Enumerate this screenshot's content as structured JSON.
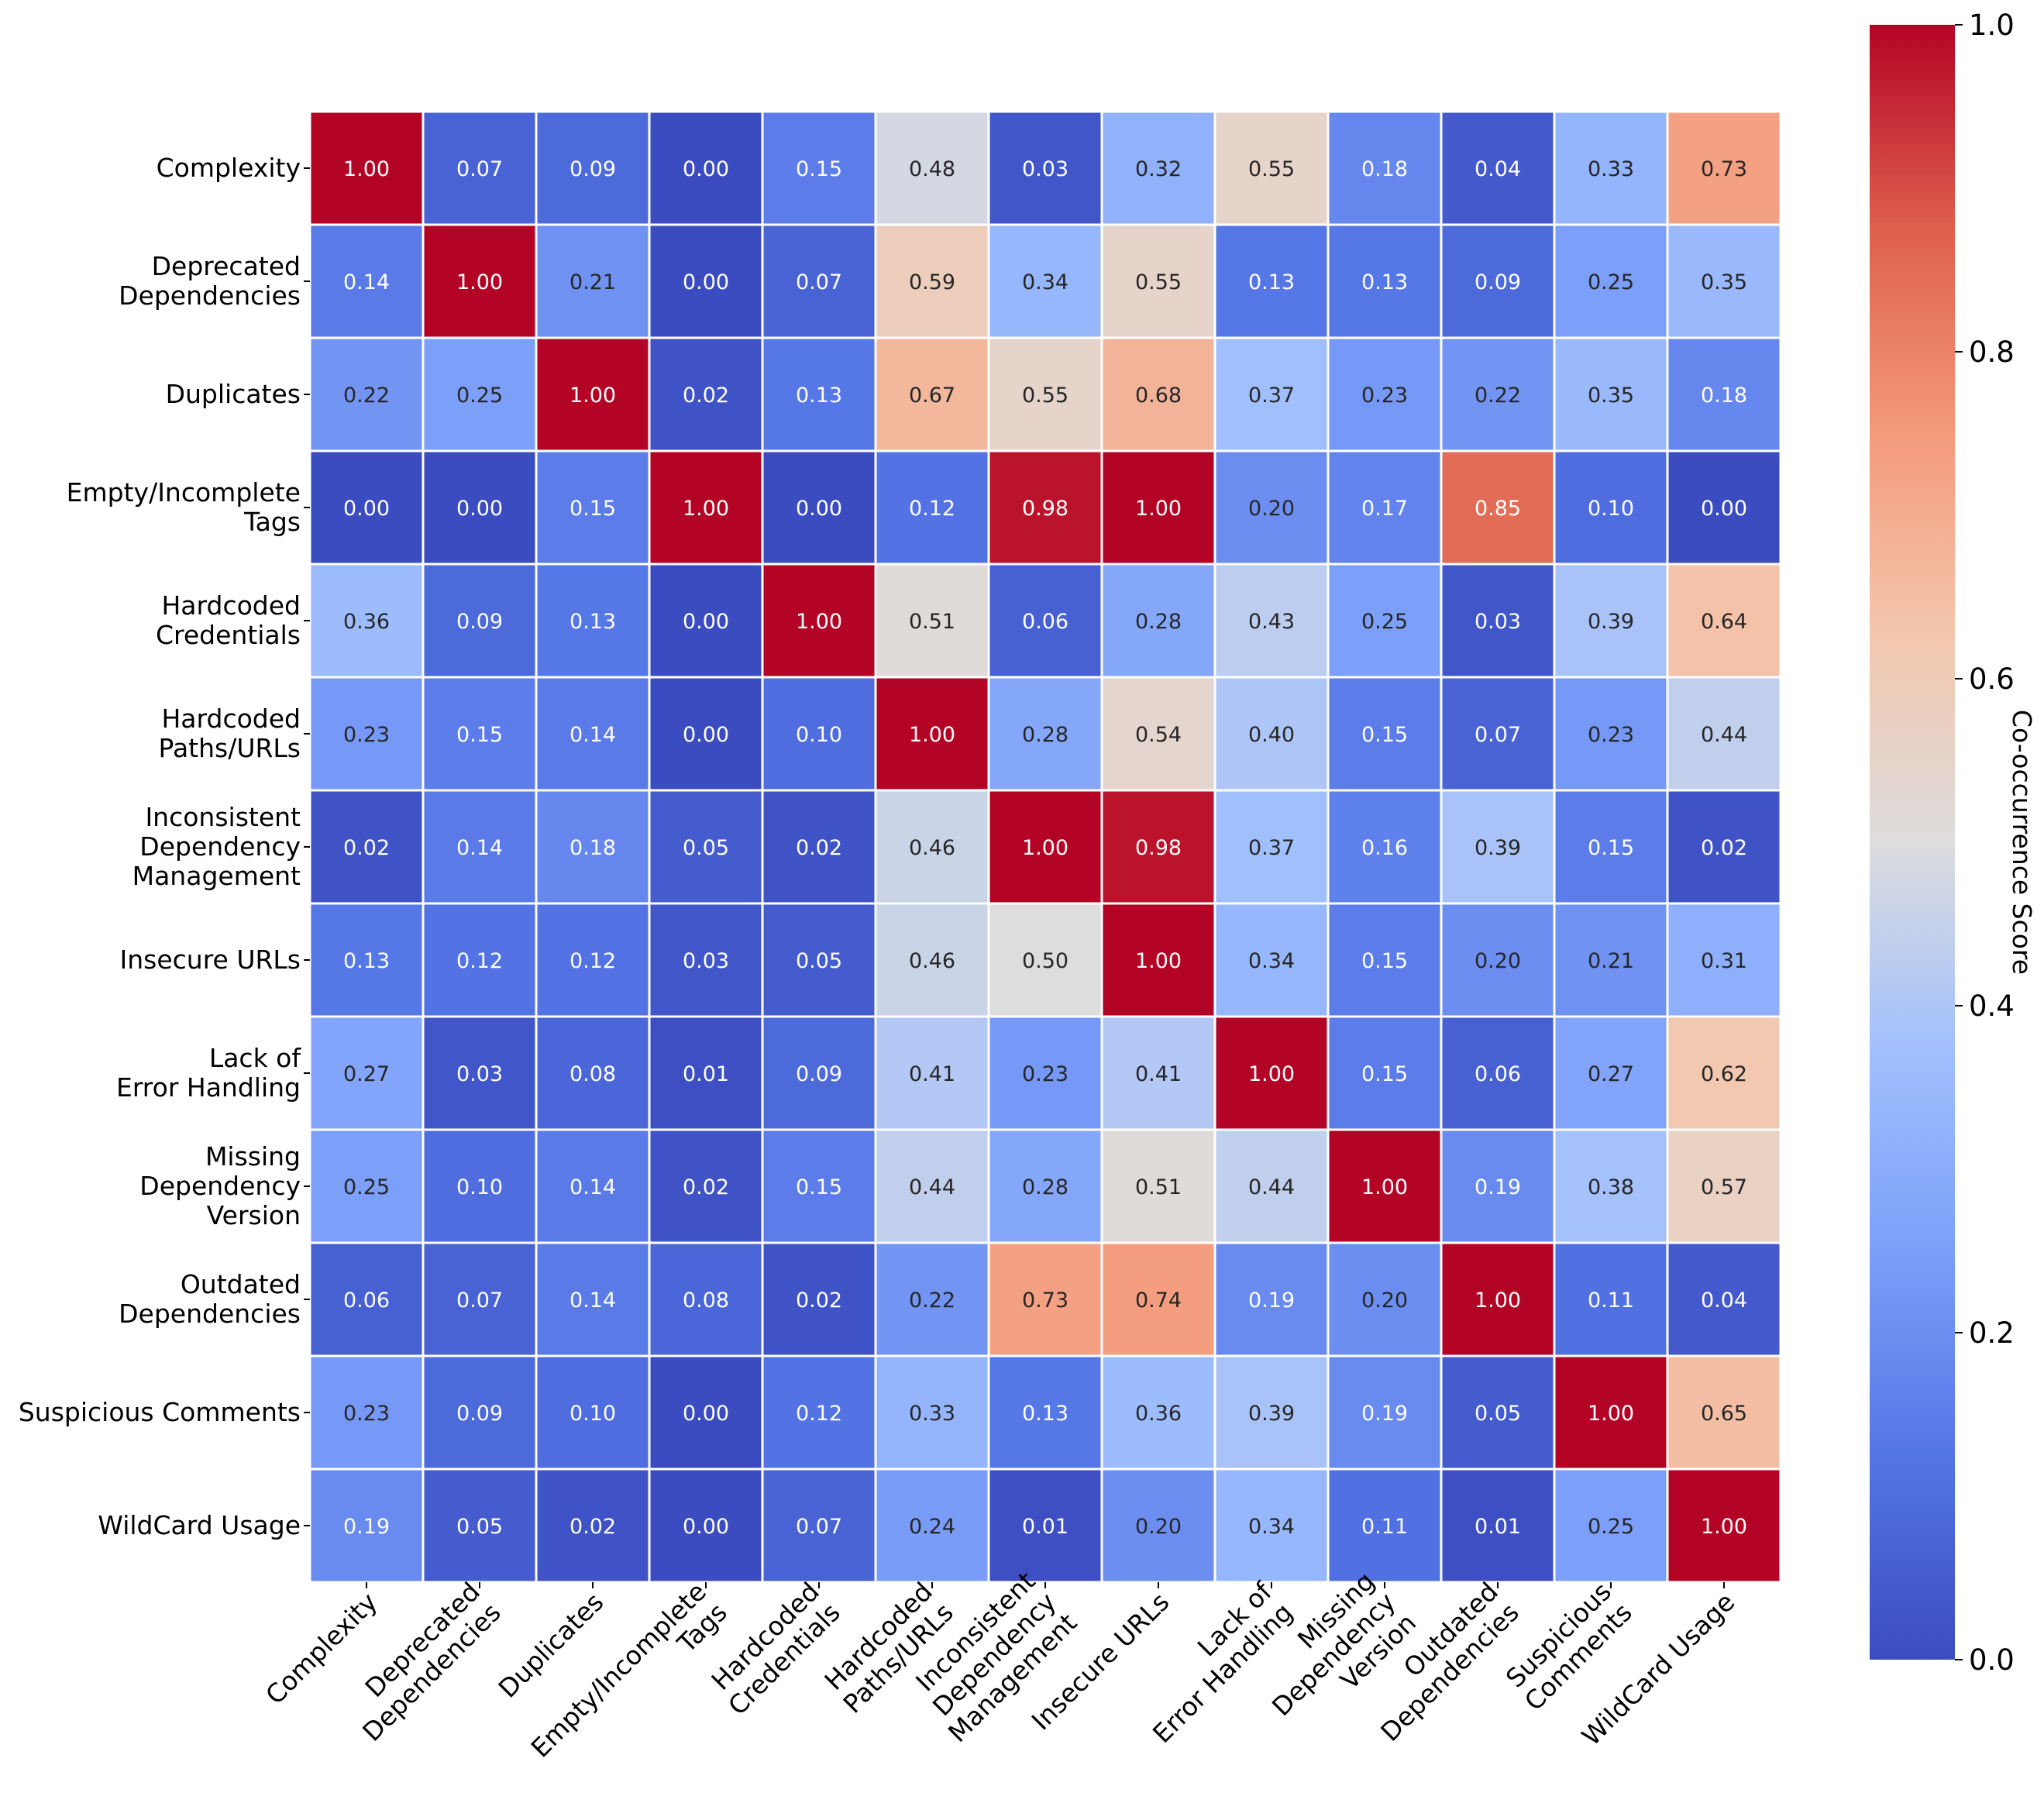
{
  "chart_data": {
    "type": "heatmap",
    "title": "",
    "xlabel": "",
    "ylabel": "",
    "colormap": "coolwarm",
    "vmin": 0.0,
    "vmax": 1.0,
    "row_labels": [
      [
        "Complexity"
      ],
      [
        "Deprecated",
        "Dependencies"
      ],
      [
        "Duplicates"
      ],
      [
        "Empty/Incomplete",
        "Tags"
      ],
      [
        "Hardcoded",
        "Credentials"
      ],
      [
        "Hardcoded",
        "Paths/URLs"
      ],
      [
        "Inconsistent",
        "Dependency",
        "Management"
      ],
      [
        "Insecure URLs"
      ],
      [
        "Lack of",
        "Error Handling"
      ],
      [
        "Missing",
        "Dependency",
        "Version"
      ],
      [
        "Outdated",
        "Dependencies"
      ],
      [
        "Suspicious Comments"
      ],
      [
        "WildCard Usage"
      ]
    ],
    "column_labels": [
      [
        "Complexity"
      ],
      [
        "Deprecated",
        "Dependencies"
      ],
      [
        "Duplicates"
      ],
      [
        "Empty/Incomplete",
        "Tags"
      ],
      [
        "Hardcoded",
        "Credentials"
      ],
      [
        "Hardcoded",
        "Paths/URLs"
      ],
      [
        "Inconsistent",
        "Dependency",
        "Management"
      ],
      [
        "Insecure URLs"
      ],
      [
        "Lack of",
        "Error Handling"
      ],
      [
        "Missing",
        "Dependency",
        "Version"
      ],
      [
        "Outdated",
        "Dependencies"
      ],
      [
        "Suspicious",
        "Comments"
      ],
      [
        "WildCard Usage"
      ]
    ],
    "values": [
      [
        1.0,
        0.07,
        0.09,
        0.0,
        0.15,
        0.48,
        0.03,
        0.32,
        0.55,
        0.18,
        0.04,
        0.33,
        0.73
      ],
      [
        0.14,
        1.0,
        0.21,
        0.0,
        0.07,
        0.59,
        0.34,
        0.55,
        0.13,
        0.13,
        0.09,
        0.25,
        0.35
      ],
      [
        0.22,
        0.25,
        1.0,
        0.02,
        0.13,
        0.67,
        0.55,
        0.68,
        0.37,
        0.23,
        0.22,
        0.35,
        0.18
      ],
      [
        0.0,
        0.0,
        0.15,
        1.0,
        0.0,
        0.12,
        0.98,
        1.0,
        0.2,
        0.17,
        0.85,
        0.1,
        0.0
      ],
      [
        0.36,
        0.09,
        0.13,
        0.0,
        1.0,
        0.51,
        0.06,
        0.28,
        0.43,
        0.25,
        0.03,
        0.39,
        0.64
      ],
      [
        0.23,
        0.15,
        0.14,
        0.0,
        0.1,
        1.0,
        0.28,
        0.54,
        0.4,
        0.15,
        0.07,
        0.23,
        0.44
      ],
      [
        0.02,
        0.14,
        0.18,
        0.05,
        0.02,
        0.46,
        1.0,
        0.98,
        0.37,
        0.16,
        0.39,
        0.15,
        0.02
      ],
      [
        0.13,
        0.12,
        0.12,
        0.03,
        0.05,
        0.46,
        0.5,
        1.0,
        0.34,
        0.15,
        0.2,
        0.21,
        0.31
      ],
      [
        0.27,
        0.03,
        0.08,
        0.01,
        0.09,
        0.41,
        0.23,
        0.41,
        1.0,
        0.15,
        0.06,
        0.27,
        0.62
      ],
      [
        0.25,
        0.1,
        0.14,
        0.02,
        0.15,
        0.44,
        0.28,
        0.51,
        0.44,
        1.0,
        0.19,
        0.38,
        0.57
      ],
      [
        0.06,
        0.07,
        0.14,
        0.08,
        0.02,
        0.22,
        0.73,
        0.74,
        0.19,
        0.2,
        1.0,
        0.11,
        0.04
      ],
      [
        0.23,
        0.09,
        0.1,
        0.0,
        0.12,
        0.33,
        0.13,
        0.36,
        0.39,
        0.19,
        0.05,
        1.0,
        0.65
      ],
      [
        0.19,
        0.05,
        0.02,
        0.0,
        0.07,
        0.24,
        0.01,
        0.2,
        0.34,
        0.11,
        0.01,
        0.25,
        1.0
      ]
    ],
    "colorbar": {
      "label": "Co-occurrence Score",
      "ticks": [
        "0.0",
        "0.2",
        "0.4",
        "0.6",
        "0.8",
        "1.0"
      ],
      "tick_values": [
        0.0,
        0.2,
        0.4,
        0.6,
        0.8,
        1.0
      ]
    }
  }
}
